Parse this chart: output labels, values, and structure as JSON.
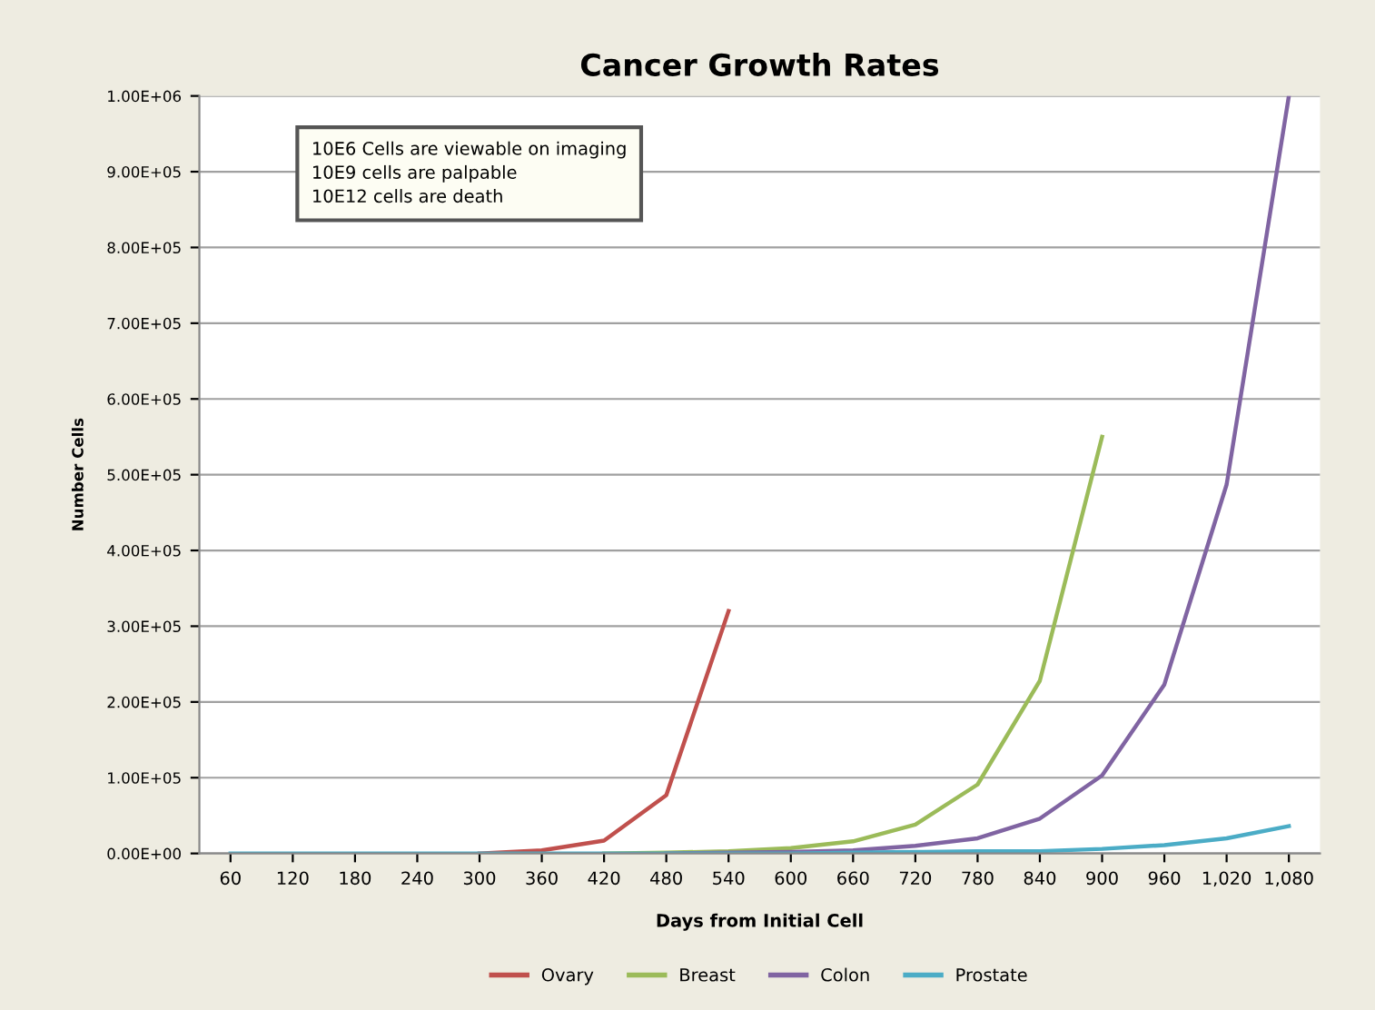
{
  "chart_data": {
    "type": "line",
    "title": "Cancer Growth Rates",
    "xlabel": "Days from Initial Cell",
    "ylabel": "Number Cells",
    "categories": [
      "60",
      "120",
      "180",
      "240",
      "300",
      "360",
      "420",
      "480",
      "540",
      "600",
      "660",
      "720",
      "780",
      "840",
      "900",
      "960",
      "1,020",
      "1,080"
    ],
    "series": [
      {
        "name": "Ovary",
        "color": "#c0504d",
        "values": [
          null,
          null,
          null,
          null,
          0,
          4000,
          17000,
          77000,
          320000,
          null,
          null,
          null,
          null,
          null,
          null,
          null,
          null,
          null
        ]
      },
      {
        "name": "Breast",
        "color": "#9bbb59",
        "values": [
          null,
          null,
          null,
          null,
          null,
          null,
          0,
          1000,
          3000,
          7000,
          16000,
          38000,
          91000,
          228000,
          550000,
          null,
          null,
          null
        ]
      },
      {
        "name": "Colon",
        "color": "#8064a2",
        "values": [
          null,
          null,
          null,
          null,
          null,
          null,
          null,
          0,
          1000,
          2000,
          4000,
          10000,
          20000,
          46000,
          103000,
          223000,
          487000,
          1000000
        ]
      },
      {
        "name": "Prostate",
        "color": "#4bacc6",
        "values": [
          0,
          0,
          0,
          0,
          0,
          0,
          0,
          0,
          0,
          0,
          1000,
          2000,
          3000,
          3000,
          6000,
          11000,
          20000,
          36000
        ]
      }
    ],
    "ylim": [
      0,
      1000000
    ],
    "yticks": [
      {
        "value": 0,
        "label": "0.00E+00"
      },
      {
        "value": 100000,
        "label": "1.00E+05"
      },
      {
        "value": 200000,
        "label": "2.00E+05"
      },
      {
        "value": 300000,
        "label": "3.00E+05"
      },
      {
        "value": 400000,
        "label": "4.00E+05"
      },
      {
        "value": 500000,
        "label": "5.00E+05"
      },
      {
        "value": 600000,
        "label": "6.00E+05"
      },
      {
        "value": 700000,
        "label": "7.00E+05"
      },
      {
        "value": 800000,
        "label": "8.00E+05"
      },
      {
        "value": 900000,
        "label": "9.00E+05"
      },
      {
        "value": 1000000,
        "label": "1.00E+06"
      }
    ],
    "annotations": [
      "10E6 Cells are viewable on imaging\n10E9 cells are palpable\n10E12 cells are death"
    ],
    "grid": "y",
    "legend": "bottom",
    "marker": "none",
    "line_style": "solid"
  }
}
